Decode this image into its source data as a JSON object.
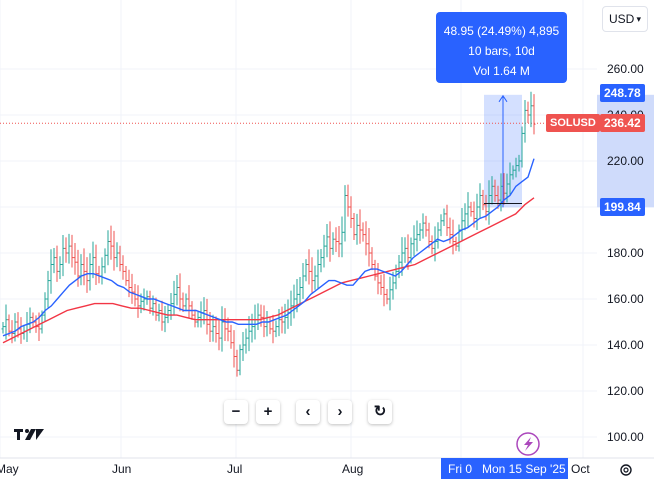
{
  "currency_label": "USD",
  "tooltip": {
    "line1": "48.95 (24.49%) 4,895",
    "line2": "10 bars, 10d",
    "line3": "Vol 1.64 M"
  },
  "price_labels": {
    "high": "248.78",
    "low": "199.84",
    "symbol": "SOLUSD",
    "last": "236.42"
  },
  "x_labels": [
    "May",
    "Jun",
    "Jul",
    "Aug",
    "Fri 0",
    "Mon 15 Sep '25",
    "Oct"
  ],
  "controls": {
    "zoom_out": "−",
    "zoom_in": "+",
    "prev": "‹",
    "next": "›",
    "reset": "↻"
  },
  "logo": "TV",
  "colors": {
    "up": "#26a69a",
    "down": "#ef5350",
    "ma_fast": "#2962ff",
    "ma_slow": "#f23645",
    "selection": "#2962ff"
  },
  "chart_data": {
    "type": "ohlc",
    "symbol": "SOLUSD",
    "currency": "USD",
    "y_ticks": [
      100,
      120,
      140,
      160,
      180,
      200,
      220,
      240,
      260
    ],
    "ylim": [
      92,
      275
    ],
    "last_price": 236.42,
    "series": [
      {
        "type": "ohlc",
        "start": "2025-04-29",
        "close": [
          148,
          151,
          146,
          145,
          150,
          147,
          145,
          146,
          149,
          152,
          150,
          148,
          147,
          153,
          160,
          168,
          175,
          178,
          172,
          175,
          182,
          180,
          183,
          178,
          176,
          170,
          175,
          172,
          168,
          175,
          178,
          171,
          170,
          174,
          179,
          185,
          183,
          178,
          180,
          175,
          172,
          168,
          165,
          163,
          160,
          157,
          159,
          160,
          161,
          156,
          158,
          153,
          155,
          150,
          152,
          155,
          158,
          162,
          165,
          160,
          157,
          160,
          157,
          153,
          150,
          152,
          154,
          155,
          149,
          146,
          148,
          145,
          143,
          150,
          147,
          146,
          141,
          135,
          129,
          138,
          140,
          143,
          146,
          148,
          151,
          153,
          152,
          148,
          150,
          147,
          146,
          148,
          151,
          150,
          152,
          154,
          157,
          160,
          162,
          165,
          170,
          175,
          172,
          168,
          170,
          175,
          178,
          183,
          187,
          182,
          186,
          185,
          184,
          189,
          205,
          200,
          195,
          188,
          192,
          190,
          188,
          184,
          180,
          175,
          170,
          167,
          165,
          162,
          160,
          164,
          167,
          172,
          176,
          180,
          182,
          178,
          184,
          186,
          188,
          190,
          193,
          190,
          185,
          182,
          185,
          190,
          194,
          197,
          191,
          188,
          185,
          183,
          190,
          194,
          197,
          200,
          198,
          195,
          200,
          205,
          201,
          198,
          205,
          209,
          205,
          203,
          209,
          206,
          210,
          214,
          216,
          218,
          220,
          232,
          242,
          240,
          244,
          236
        ]
      },
      {
        "name": "",
        "type": "ma",
        "values": [
          144,
          145,
          146,
          148,
          149,
          150,
          152,
          155,
          157,
          160,
          163,
          166,
          168,
          170,
          171,
          171,
          170,
          169,
          168,
          166,
          165,
          163,
          162,
          161,
          160,
          160,
          159,
          158,
          157,
          156,
          155,
          155,
          155,
          154,
          153,
          152,
          151,
          150,
          150,
          149,
          149,
          149,
          149,
          150,
          150,
          151,
          152,
          153,
          155,
          157,
          159,
          162,
          164,
          166,
          168,
          168,
          167,
          166,
          166,
          169,
          172,
          173,
          173,
          172,
          171,
          170,
          172,
          175,
          178,
          180,
          182,
          184,
          186,
          185,
          186,
          188,
          190,
          191,
          193,
          195,
          196,
          198,
          200,
          203,
          205,
          209,
          211,
          213,
          221
        ]
      },
      {
        "name": "",
        "type": "ma",
        "values": [
          141,
          143,
          145,
          147,
          149,
          151,
          153,
          155,
          156,
          157,
          158,
          158,
          158,
          157,
          156,
          156,
          155,
          154,
          153,
          153,
          152,
          151,
          151,
          151,
          151,
          151,
          151,
          151,
          151,
          152,
          153,
          155,
          157,
          159,
          161,
          163,
          165,
          167,
          168,
          169,
          170,
          171,
          172,
          173,
          174,
          175,
          177,
          179,
          181,
          183,
          185,
          187,
          189,
          191,
          193,
          195,
          197,
          201,
          204
        ]
      }
    ],
    "measurement": {
      "from": 199.84,
      "to": 248.78,
      "change": "48.95 (24.49%) 4,895",
      "bars": "10 bars, 10d",
      "volume": "Vol 1.64 M"
    },
    "x_tick_labels": [
      "May",
      "Jun",
      "Jul",
      "Aug",
      "Fri 0",
      "Mon 15 Sep '25",
      "Oct"
    ]
  }
}
